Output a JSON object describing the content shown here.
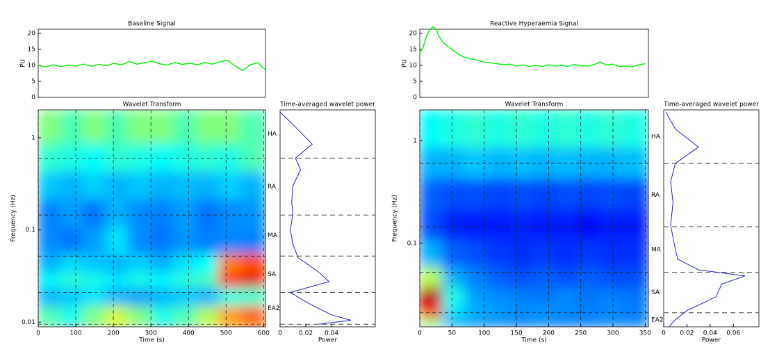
{
  "chart_data": [
    {
      "type": "line",
      "title": "Baseline Signal",
      "ylabel": "PU",
      "color": "#00ee00",
      "x": [
        0,
        20,
        40,
        60,
        80,
        100,
        120,
        140,
        160,
        180,
        200,
        220,
        240,
        260,
        280,
        300,
        320,
        340,
        360,
        380,
        400,
        420,
        440,
        460,
        480,
        500,
        520,
        540,
        560,
        580,
        600
      ],
      "values": [
        10,
        9.5,
        10.2,
        9.6,
        10.1,
        9.8,
        10.4,
        9.7,
        10.3,
        9.9,
        10.6,
        10.2,
        11.2,
        10.4,
        10.8,
        11.3,
        10.5,
        10.1,
        10.9,
        10.3,
        10.7,
        10.2,
        10.9,
        10.4,
        11.1,
        11.6,
        9.8,
        8.4,
        10.2,
        10.8,
        8.6
      ],
      "xlim": [
        0,
        600
      ],
      "ylim": [
        0,
        21.3
      ],
      "yticks": [
        0,
        5,
        10,
        15,
        20
      ]
    },
    {
      "type": "heatmap",
      "title": "Wavelet Transform",
      "xlabel": "Time (s)",
      "ylabel": "Frequency (Hz)",
      "x": [
        30,
        90,
        150,
        210,
        270,
        330,
        390,
        450,
        510,
        570
      ],
      "y": [
        1.2,
        0.6,
        0.3,
        0.15,
        0.075,
        0.04,
        0.028,
        0.02,
        0.011
      ],
      "z": [
        [
          0.5,
          0.45,
          0.5,
          0.45,
          0.5,
          0.5,
          0.45,
          0.5,
          0.5,
          0.45
        ],
        [
          0.42,
          0.4,
          0.38,
          0.42,
          0.4,
          0.38,
          0.4,
          0.42,
          0.4,
          0.45
        ],
        [
          0.32,
          0.3,
          0.33,
          0.3,
          0.32,
          0.3,
          0.31,
          0.3,
          0.33,
          0.3
        ],
        [
          0.25,
          0.28,
          0.24,
          0.3,
          0.26,
          0.25,
          0.28,
          0.24,
          0.26,
          0.27
        ],
        [
          0.26,
          0.24,
          0.28,
          0.35,
          0.26,
          0.24,
          0.27,
          0.25,
          0.26,
          0.25
        ],
        [
          0.3,
          0.34,
          0.32,
          0.3,
          0.33,
          0.3,
          0.35,
          0.38,
          0.75,
          0.8
        ],
        [
          0.38,
          0.42,
          0.4,
          0.36,
          0.4,
          0.38,
          0.42,
          0.45,
          0.85,
          0.9
        ],
        [
          0.3,
          0.32,
          0.35,
          0.3,
          0.28,
          0.3,
          0.32,
          0.3,
          0.4,
          0.42
        ],
        [
          0.45,
          0.4,
          0.5,
          0.58,
          0.5,
          0.4,
          0.45,
          0.55,
          0.72,
          0.78
        ]
      ],
      "xlim": [
        0,
        605
      ],
      "ylim": [
        0.0089,
        2.0
      ],
      "log_y": true,
      "grid": true,
      "xticks": [
        0,
        100,
        200,
        300,
        400,
        500,
        600
      ],
      "yticks": [
        0.01,
        0.1,
        1
      ],
      "band_boundaries": [
        0.6,
        0.145,
        0.052,
        0.021,
        0.0095
      ]
    },
    {
      "type": "power",
      "title": "Time-averaged wavelet power",
      "xlabel": "Power",
      "color": "#2020c0",
      "x": [
        0.0,
        0.012,
        0.025,
        0.012,
        0.016,
        0.01,
        0.009,
        0.01,
        0.008,
        0.01,
        0.014,
        0.03,
        0.038,
        0.008,
        0.022,
        0.04,
        0.055,
        0.03
      ],
      "y": [
        1.9,
        1.3,
        0.85,
        0.6,
        0.45,
        0.3,
        0.2,
        0.15,
        0.1,
        0.07,
        0.05,
        0.035,
        0.0275,
        0.021,
        0.016,
        0.012,
        0.0105,
        0.0095
      ],
      "xlim": [
        0,
        0.074
      ],
      "ylim": [
        0.0089,
        2.0
      ],
      "log_y": true,
      "xticks": [
        0,
        0.02,
        0.04
      ],
      "band_labels": [
        "HA",
        "RA",
        "MA",
        "SA",
        "EA2"
      ],
      "band_boundaries": [
        0.6,
        0.145,
        0.052,
        0.021,
        0.0095
      ]
    },
    {
      "type": "line",
      "title": "Reactive Hyperaemia Signal",
      "ylabel": "PU",
      "color": "#00ee00",
      "x": [
        0,
        5,
        10,
        15,
        20,
        25,
        30,
        35,
        40,
        50,
        60,
        70,
        80,
        90,
        100,
        110,
        120,
        130,
        140,
        150,
        160,
        170,
        180,
        190,
        200,
        210,
        220,
        230,
        240,
        250,
        260,
        270,
        280,
        290,
        300,
        310,
        320,
        330,
        340,
        350
      ],
      "values": [
        14,
        15.5,
        19,
        21,
        22,
        21.5,
        19,
        17.5,
        16.5,
        15,
        13.5,
        12.5,
        12,
        11.5,
        11,
        10.8,
        10.5,
        10.2,
        10.4,
        9.8,
        10.1,
        9.7,
        10,
        9.6,
        10.2,
        9.8,
        10,
        9.7,
        10.3,
        9.9,
        9.8,
        10.2,
        11,
        10.1,
        10.4,
        9.6,
        9.8,
        9.5,
        10.2,
        10.5
      ],
      "xlim": [
        0,
        355
      ],
      "ylim": [
        0,
        21.3
      ],
      "yticks": [
        0,
        5,
        10,
        15,
        20
      ]
    },
    {
      "type": "heatmap",
      "title": "Wavelet Transform",
      "xlabel": "Time (s)",
      "ylabel": "Frequency (Hz)",
      "x": [
        17.5,
        52.5,
        87.5,
        122.5,
        157.5,
        192.5,
        227.5,
        262.5,
        297.5,
        332.5
      ],
      "y": [
        1.2,
        0.6,
        0.3,
        0.15,
        0.075,
        0.045,
        0.03,
        0.021,
        0.0165
      ],
      "z": [
        [
          0.38,
          0.4,
          0.42,
          0.4,
          0.42,
          0.4,
          0.42,
          0.4,
          0.42,
          0.4
        ],
        [
          0.3,
          0.3,
          0.32,
          0.3,
          0.31,
          0.3,
          0.31,
          0.3,
          0.3,
          0.31
        ],
        [
          0.22,
          0.2,
          0.2,
          0.19,
          0.2,
          0.19,
          0.2,
          0.19,
          0.2,
          0.19
        ],
        [
          0.2,
          0.16,
          0.15,
          0.15,
          0.16,
          0.15,
          0.15,
          0.14,
          0.15,
          0.15
        ],
        [
          0.3,
          0.22,
          0.2,
          0.18,
          0.17,
          0.18,
          0.17,
          0.18,
          0.17,
          0.17
        ],
        [
          0.55,
          0.3,
          0.25,
          0.22,
          0.2,
          0.22,
          0.2,
          0.22,
          0.2,
          0.2
        ],
        [
          0.95,
          0.4,
          0.28,
          0.26,
          0.25,
          0.24,
          0.26,
          0.24,
          0.25,
          0.24
        ],
        [
          0.85,
          0.35,
          0.3,
          0.28,
          0.26,
          0.27,
          0.26,
          0.25,
          0.26,
          0.25
        ],
        [
          0.5,
          0.3,
          0.27,
          0.26,
          0.25,
          0.26,
          0.25,
          0.25,
          0.26,
          0.25
        ]
      ],
      "xlim": [
        0,
        355
      ],
      "ylim": [
        0.0153,
        2.0
      ],
      "log_y": true,
      "grid": true,
      "xticks": [
        0,
        50,
        100,
        150,
        200,
        250,
        300,
        350
      ],
      "yticks": [
        0.1,
        1
      ],
      "band_boundaries": [
        0.6,
        0.145,
        0.052,
        0.021
      ]
    },
    {
      "type": "power",
      "title": "Time-averaged wavelet power",
      "xlabel": "Power",
      "color": "#2020c0",
      "x": [
        0.002,
        0.01,
        0.03,
        0.01,
        0.006,
        0.008,
        0.006,
        0.009,
        0.012,
        0.03,
        0.07,
        0.05,
        0.045,
        0.02,
        0.01,
        0.005
      ],
      "y": [
        1.9,
        1.3,
        0.87,
        0.6,
        0.4,
        0.25,
        0.15,
        0.1,
        0.07,
        0.055,
        0.048,
        0.04,
        0.03,
        0.022,
        0.018,
        0.0155
      ],
      "xlim": [
        0,
        0.082
      ],
      "ylim": [
        0.0153,
        2.0
      ],
      "log_y": true,
      "xticks": [
        0,
        0.02,
        0.04,
        0.06
      ],
      "band_labels": [
        "HA",
        "RA",
        "MA",
        "SA",
        "EA2"
      ],
      "band_boundaries": [
        0.6,
        0.145,
        0.052,
        0.021
      ]
    }
  ]
}
